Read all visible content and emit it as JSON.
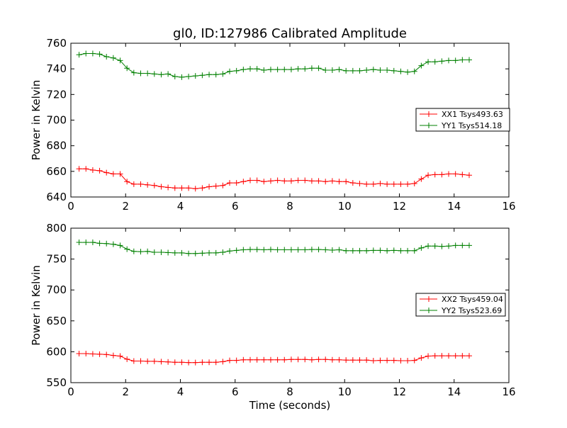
{
  "chart_data": [
    {
      "type": "line",
      "title": "gl0, ID:127986 Calibrated Amplitude",
      "xlabel": "",
      "ylabel": "Power in Kelvin",
      "xlim": [
        0,
        16
      ],
      "ylim": [
        640,
        760
      ],
      "xticks": [
        0,
        2,
        4,
        6,
        8,
        10,
        12,
        14,
        16
      ],
      "yticks": [
        640,
        660,
        680,
        700,
        720,
        740,
        760
      ],
      "grid": false,
      "legend": "center-right",
      "marker": "+",
      "x": [
        0.3,
        0.55,
        0.8,
        1.05,
        1.3,
        1.55,
        1.8,
        2.05,
        2.3,
        2.55,
        2.8,
        3.05,
        3.3,
        3.55,
        3.8,
        4.05,
        4.3,
        4.55,
        4.8,
        5.05,
        5.3,
        5.55,
        5.8,
        6.05,
        6.3,
        6.55,
        6.8,
        7.05,
        7.3,
        7.55,
        7.8,
        8.05,
        8.3,
        8.55,
        8.8,
        9.05,
        9.3,
        9.55,
        9.8,
        10.05,
        10.3,
        10.55,
        10.8,
        11.05,
        11.3,
        11.55,
        11.8,
        12.05,
        12.3,
        12.55,
        12.8,
        13.05,
        13.3,
        13.55,
        13.8,
        14.05,
        14.3,
        14.55
      ],
      "series": [
        {
          "name": "XX1 Tsys493.63",
          "color": "#ff0000",
          "values": [
            662,
            662,
            661,
            660.5,
            659,
            658,
            658,
            652,
            650,
            650,
            649.5,
            649,
            648,
            647.5,
            647,
            647,
            647,
            646.5,
            647,
            648,
            648.5,
            649,
            651,
            651,
            652,
            653,
            653,
            652,
            652.5,
            653,
            652.5,
            652.5,
            653,
            653,
            652.5,
            652.5,
            652,
            652.5,
            652,
            652,
            651,
            650.5,
            650,
            650,
            650.5,
            650,
            650,
            650,
            650,
            650.5,
            654,
            657,
            657.5,
            657.5,
            658,
            658,
            657.5,
            657
          ]
        },
        {
          "name": "YY1 Tsys514.18",
          "color": "#008000",
          "values": [
            751,
            752,
            752,
            751.5,
            749.5,
            748.5,
            746.5,
            740.5,
            737,
            736.5,
            736.5,
            736,
            735.5,
            736,
            734,
            733.5,
            734,
            734.5,
            735,
            735.5,
            735.5,
            736,
            738,
            738.5,
            739.5,
            740,
            740,
            739,
            739.5,
            739.5,
            739.5,
            739.5,
            740,
            740,
            740.5,
            740.5,
            739,
            739,
            739.5,
            738.5,
            738.5,
            738.5,
            739,
            739.5,
            739,
            739,
            738.5,
            738,
            737.5,
            738,
            742.5,
            745.5,
            745.5,
            746,
            746.5,
            746.5,
            747,
            747
          ]
        }
      ]
    },
    {
      "type": "line",
      "title": "",
      "xlabel": "Time (seconds)",
      "ylabel": "Power in Kelvin",
      "xlim": [
        0,
        16
      ],
      "ylim": [
        550,
        800
      ],
      "xticks": [
        0,
        2,
        4,
        6,
        8,
        10,
        12,
        14,
        16
      ],
      "yticks": [
        550,
        600,
        650,
        700,
        750,
        800
      ],
      "grid": false,
      "legend": "center-right",
      "marker": "+",
      "x": [
        0.3,
        0.55,
        0.8,
        1.05,
        1.3,
        1.55,
        1.8,
        2.05,
        2.3,
        2.55,
        2.8,
        3.05,
        3.3,
        3.55,
        3.8,
        4.05,
        4.3,
        4.55,
        4.8,
        5.05,
        5.3,
        5.55,
        5.8,
        6.05,
        6.3,
        6.55,
        6.8,
        7.05,
        7.3,
        7.55,
        7.8,
        8.05,
        8.3,
        8.55,
        8.8,
        9.05,
        9.3,
        9.55,
        9.8,
        10.05,
        10.3,
        10.55,
        10.8,
        11.05,
        11.3,
        11.55,
        11.8,
        12.05,
        12.3,
        12.55,
        12.8,
        13.05,
        13.3,
        13.55,
        13.8,
        14.05,
        14.3,
        14.55
      ],
      "series": [
        {
          "name": "XX2 Tsys459.04",
          "color": "#ff0000",
          "values": [
            597,
            597,
            596.5,
            596,
            595.5,
            594,
            593,
            588,
            585,
            585,
            584.5,
            584.5,
            584,
            583.5,
            583,
            583,
            582.5,
            582.5,
            583,
            583,
            583,
            584,
            586,
            586,
            587,
            587,
            587,
            587,
            587,
            587,
            587,
            587.5,
            587.5,
            587.5,
            587,
            587.5,
            587.5,
            587,
            587,
            586.5,
            586.5,
            586.5,
            586.5,
            585.5,
            586,
            586,
            586,
            585.5,
            585.5,
            586,
            590,
            593,
            593.5,
            593.5,
            593.5,
            593.5,
            593.5,
            593.5
          ]
        },
        {
          "name": "YY2 Tsys523.69",
          "color": "#008000",
          "values": [
            777,
            777,
            777,
            775.5,
            775,
            774,
            772,
            766,
            762.5,
            762,
            762.5,
            761,
            761,
            760.5,
            760,
            760,
            759,
            759,
            759.5,
            760,
            760,
            761,
            763,
            764,
            765,
            765.5,
            765.5,
            765,
            765.5,
            765,
            765,
            765,
            765,
            765,
            765.5,
            765.5,
            765,
            764.5,
            765,
            763.5,
            763.5,
            763.5,
            763.5,
            764,
            764,
            763.5,
            764,
            763.5,
            763.5,
            763.5,
            768,
            771,
            771,
            770.5,
            771,
            772,
            772,
            772
          ]
        }
      ]
    }
  ]
}
